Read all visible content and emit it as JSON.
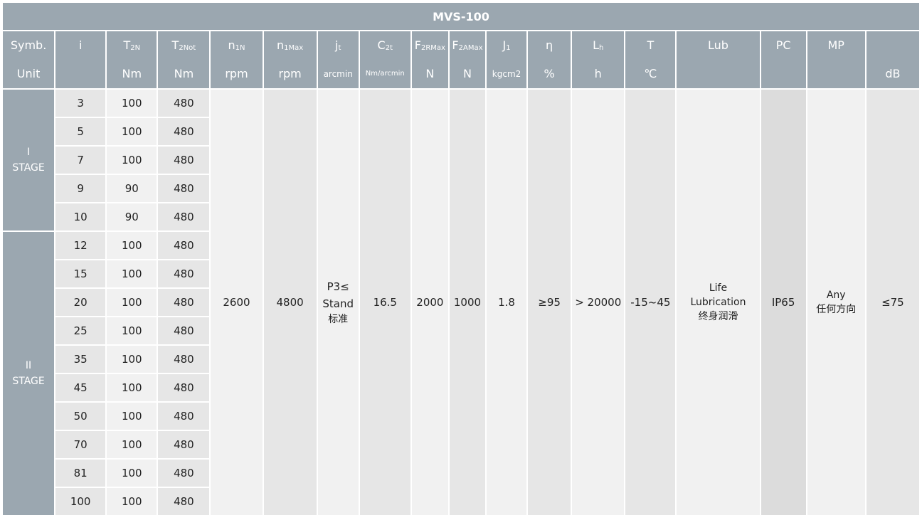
{
  "title": "MVS-100",
  "header": [
    {
      "sym": "Symb.",
      "sub": "",
      "unit": "Unit"
    },
    {
      "sym": "i",
      "sub": "",
      "unit": ""
    },
    {
      "sym": "T",
      "sub": "2N",
      "unit": "Nm"
    },
    {
      "sym": "T",
      "sub": "2Not",
      "unit": "Nm"
    },
    {
      "sym": "n",
      "sub": "1N",
      "unit": "rpm"
    },
    {
      "sym": "n",
      "sub": "1Max",
      "unit": "rpm"
    },
    {
      "sym": "j",
      "sub": "t",
      "unit": "arcmin"
    },
    {
      "sym": "C",
      "sub": "2t",
      "unit": "Nm/arcmin"
    },
    {
      "sym": "F",
      "sub": "2RMax",
      "unit": "N"
    },
    {
      "sym": "F",
      "sub": "2AMax",
      "unit": "N"
    },
    {
      "sym": "J",
      "sub": "1",
      "unit": "kgcm2"
    },
    {
      "sym": "η",
      "sub": "",
      "unit": "%"
    },
    {
      "sym": "L",
      "sub": "h",
      "unit": "h"
    },
    {
      "sym": "T",
      "sub": "",
      "unit": "℃"
    },
    {
      "sym": "Lub",
      "sub": "",
      "unit": ""
    },
    {
      "sym": "PC",
      "sub": "",
      "unit": ""
    },
    {
      "sym": "MP",
      "sub": "",
      "unit": ""
    },
    {
      "sym": "",
      "sub": "",
      "unit": "dB"
    }
  ],
  "stages": [
    {
      "num": "I",
      "label": "STAGE"
    },
    {
      "num": "II",
      "label": "STAGE"
    }
  ],
  "rows": [
    {
      "i": "3",
      "t2n": "100",
      "t2not": "480"
    },
    {
      "i": "5",
      "t2n": "100",
      "t2not": "480"
    },
    {
      "i": "7",
      "t2n": "100",
      "t2not": "480"
    },
    {
      "i": "9",
      "t2n": "90",
      "t2not": "480"
    },
    {
      "i": "10",
      "t2n": "90",
      "t2not": "480"
    },
    {
      "i": "12",
      "t2n": "100",
      "t2not": "480"
    },
    {
      "i": "15",
      "t2n": "100",
      "t2not": "480"
    },
    {
      "i": "20",
      "t2n": "100",
      "t2not": "480"
    },
    {
      "i": "25",
      "t2n": "100",
      "t2not": "480"
    },
    {
      "i": "35",
      "t2n": "100",
      "t2not": "480"
    },
    {
      "i": "45",
      "t2n": "100",
      "t2not": "480"
    },
    {
      "i": "50",
      "t2n": "100",
      "t2not": "480"
    },
    {
      "i": "70",
      "t2n": "100",
      "t2not": "480"
    },
    {
      "i": "81",
      "t2n": "100",
      "t2not": "480"
    },
    {
      "i": "100",
      "t2n": "100",
      "t2not": "480"
    }
  ],
  "common": {
    "n1n": "2600",
    "n1max": "4800",
    "jt_1": "P3≤",
    "jt_2": "Stand",
    "jt_3": "标准",
    "c2t": "16.5",
    "f2r": "2000",
    "f2a": "1000",
    "j1": "1.8",
    "eta": "≥95",
    "lh": "> 20000",
    "temp": "-15~45",
    "lub_1": "Life",
    "lub_2": "Lubrication",
    "lub_3": "终身润滑",
    "pc": "IP65",
    "mp_1": "Any",
    "mp_2": "任何方向",
    "db": "≤75"
  },
  "colors": {
    "header": "#9ba7b0",
    "cell_dark": "#e6e6e6",
    "cell_light": "#f1f1f1"
  }
}
